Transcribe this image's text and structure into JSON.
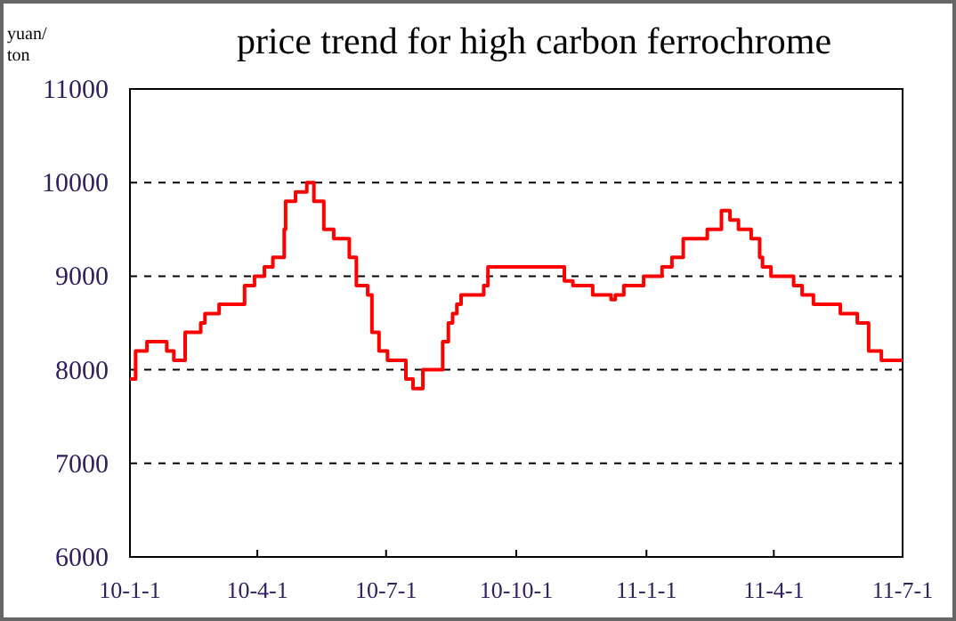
{
  "chart_data": {
    "type": "step",
    "title": "price trend for high carbon ferrochrome",
    "ylabel": "yuan/ton",
    "x": [
      "2010-01-01",
      "2010-01-05",
      "2010-01-13",
      "2010-01-27",
      "2010-02-01",
      "2010-02-09",
      "2010-02-20",
      "2010-02-23",
      "2010-03-05",
      "2010-03-23",
      "2010-03-30",
      "2010-04-06",
      "2010-04-12",
      "2010-04-20",
      "2010-04-21",
      "2010-04-28",
      "2010-05-06",
      "2010-05-11",
      "2010-05-18",
      "2010-05-25",
      "2010-06-05",
      "2010-06-10",
      "2010-06-18",
      "2010-06-21",
      "2010-06-26",
      "2010-07-02",
      "2010-07-15",
      "2010-07-20",
      "2010-07-27",
      "2010-08-10",
      "2010-08-14",
      "2010-08-17",
      "2010-08-20",
      "2010-08-23",
      "2010-09-08",
      "2010-09-11",
      "2010-11-04",
      "2010-11-10",
      "2010-11-24",
      "2010-12-07",
      "2010-12-10",
      "2010-12-16",
      "2010-12-30",
      "2011-01-12",
      "2011-01-19",
      "2011-01-27",
      "2011-02-13",
      "2011-02-23",
      "2011-03-01",
      "2011-03-07",
      "2011-03-16",
      "2011-03-22",
      "2011-03-24",
      "2011-03-30",
      "2011-04-15",
      "2011-04-21",
      "2011-04-29",
      "2011-05-18",
      "2011-05-30",
      "2011-06-07",
      "2011-06-16",
      "2011-07-01"
    ],
    "series": [
      {
        "color": "#ff0000",
        "values": [
          7900,
          8200,
          8300,
          8200,
          8100,
          8400,
          8500,
          8600,
          8700,
          8900,
          9000,
          9100,
          9200,
          9500,
          9800,
          9900,
          10000,
          9800,
          9500,
          9400,
          9200,
          8900,
          8800,
          8400,
          8200,
          8100,
          7900,
          7800,
          8000,
          8300,
          8500,
          8600,
          8700,
          8800,
          8900,
          9100,
          8950,
          8900,
          8800,
          8750,
          8800,
          8900,
          9000,
          9100,
          9200,
          9400,
          9500,
          9700,
          9600,
          9500,
          9400,
          9200,
          9100,
          9000,
          8900,
          8800,
          8700,
          8600,
          8500,
          8200,
          8100,
          8100
        ]
      }
    ],
    "xlim": [
      "2010-01-01",
      "2011-07-01"
    ],
    "xticks": [
      {
        "value": "2010-01-01",
        "label": "10-1-1"
      },
      {
        "value": "2010-04-01",
        "label": "10-4-1"
      },
      {
        "value": "2010-07-01",
        "label": "10-7-1"
      },
      {
        "value": "2010-10-01",
        "label": "10-10-1"
      },
      {
        "value": "2011-01-01",
        "label": "11-1-1"
      },
      {
        "value": "2011-04-01",
        "label": "11-4-1"
      },
      {
        "value": "2011-07-01",
        "label": "11-7-1"
      }
    ],
    "ylim": [
      6000,
      11000
    ],
    "yticks": [
      6000,
      7000,
      8000,
      9000,
      10000,
      11000
    ],
    "grid": "y",
    "marker": "none",
    "line_style": "solid"
  }
}
